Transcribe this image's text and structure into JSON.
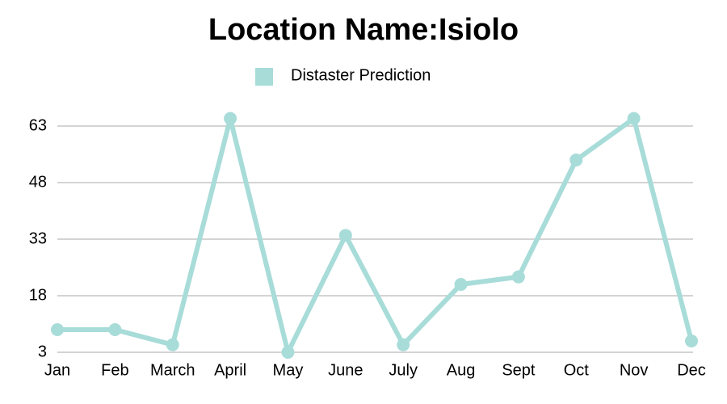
{
  "chart_data": {
    "type": "line",
    "title": "Location Name:Isiolo",
    "categories": [
      "Jan",
      "Feb",
      "March",
      "April",
      "May",
      "June",
      "July",
      "Aug",
      "Sept",
      "Oct",
      "Nov",
      "Dec"
    ],
    "series": [
      {
        "name": "Distaster Prediction",
        "color": "#a8dcd9",
        "values": [
          9,
          9,
          5,
          65,
          3,
          34,
          5,
          21,
          23,
          54,
          65,
          6
        ]
      }
    ],
    "ylim": [
      3,
      66
    ],
    "yticks": [
      3,
      18,
      33,
      48,
      63
    ],
    "grid": true,
    "legend": "top"
  }
}
